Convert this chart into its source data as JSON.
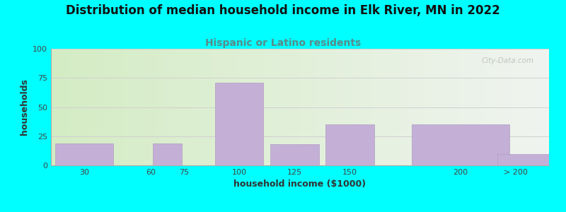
{
  "title": "Distribution of median household income in Elk River, MN in 2022",
  "subtitle": "Hispanic or Latino residents",
  "xlabel": "household income ($1000)",
  "ylabel": "households",
  "background_color": "#00FFFF",
  "plot_bg_gradient_left": "#d4ecc4",
  "plot_bg_gradient_right": "#f0f4f0",
  "bar_color": "#c4afd6",
  "bar_edge_color": "#b09ec4",
  "categories": [
    "30",
    "60",
    "75",
    "100",
    "125",
    "150",
    "200",
    "> 200"
  ],
  "values": [
    19,
    0,
    19,
    71,
    18,
    35,
    35,
    10
  ],
  "xleft_edges": [
    15,
    45,
    60,
    87.5,
    112.5,
    137.5,
    175,
    215
  ],
  "xwidths": [
    30,
    15,
    15,
    25,
    25,
    25,
    50,
    30
  ],
  "x_tick_positions": [
    30,
    60,
    75,
    100,
    125,
    150,
    200
  ],
  "x_tick_last": 225,
  "xlim": [
    15,
    240
  ],
  "ylim": [
    0,
    100
  ],
  "yticks": [
    0,
    25,
    50,
    75,
    100
  ],
  "grid_color": "#d0d0d0",
  "title_fontsize": 12,
  "subtitle_fontsize": 10,
  "subtitle_color": "#5a8a8a",
  "title_color": "#111111",
  "axis_label_fontsize": 9,
  "tick_fontsize": 8,
  "watermark_text": "City-Data.com",
  "watermark_color": "#bbbbbb"
}
